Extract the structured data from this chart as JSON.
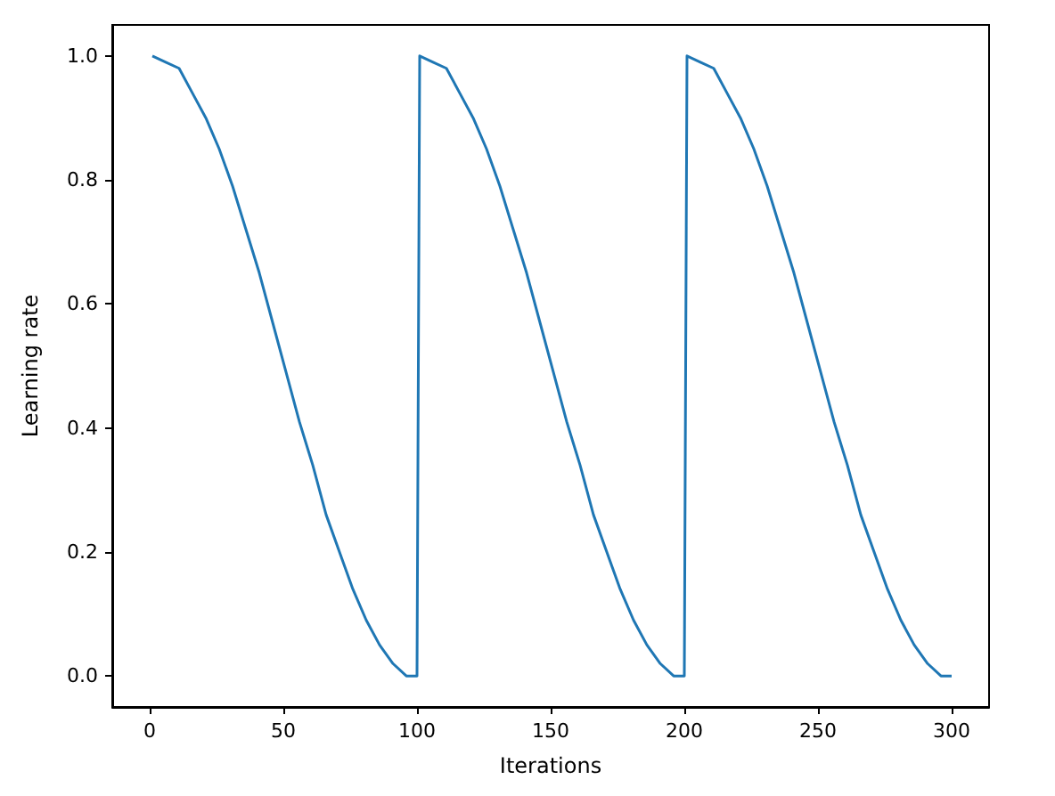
{
  "chart_data": {
    "type": "line",
    "xlabel": "Iterations",
    "ylabel": "Learning rate",
    "xlim": [
      -14,
      314
    ],
    "xticks": [
      0,
      50,
      100,
      150,
      200,
      250,
      300
    ],
    "ylim": [
      -0.05,
      1.05
    ],
    "yticks": [
      {
        "value": 0,
        "label": "0.0"
      },
      0.2,
      0.4,
      0.6,
      0.8,
      {
        "value": 1,
        "label": "1.0"
      }
    ],
    "grid": false,
    "marker": "none",
    "line_style": "solid",
    "series": [
      {
        "color": "#1f77b4",
        "x": [
          1,
          6,
          11,
          16,
          21,
          26,
          31,
          36,
          41,
          46,
          51,
          56,
          61,
          66,
          71,
          76,
          81,
          86,
          91,
          96,
          100,
          101,
          106,
          111,
          116,
          121,
          126,
          131,
          136,
          141,
          146,
          151,
          156,
          161,
          166,
          171,
          176,
          181,
          186,
          191,
          196,
          200,
          201,
          206,
          211,
          216,
          221,
          226,
          231,
          236,
          241,
          246,
          251,
          256,
          261,
          266,
          271,
          276,
          281,
          286,
          291,
          296,
          300
        ],
        "values": [
          1.0,
          0.99,
          0.98,
          0.94,
          0.9,
          0.85,
          0.79,
          0.72,
          0.65,
          0.57,
          0.49,
          0.41,
          0.34,
          0.26,
          0.2,
          0.14,
          0.09,
          0.05,
          0.02,
          0.0,
          0.0,
          1.0,
          0.99,
          0.98,
          0.94,
          0.9,
          0.85,
          0.79,
          0.72,
          0.65,
          0.57,
          0.49,
          0.41,
          0.34,
          0.26,
          0.2,
          0.14,
          0.09,
          0.05,
          0.02,
          0.0,
          0.0,
          1.0,
          0.99,
          0.98,
          0.94,
          0.9,
          0.85,
          0.79,
          0.72,
          0.65,
          0.57,
          0.49,
          0.41,
          0.34,
          0.26,
          0.2,
          0.14,
          0.09,
          0.05,
          0.02,
          0.0,
          0.0
        ]
      }
    ]
  }
}
